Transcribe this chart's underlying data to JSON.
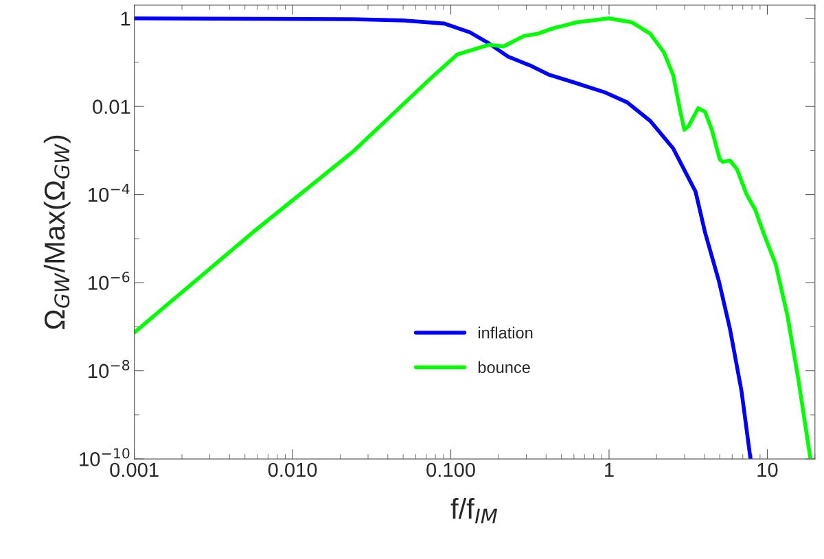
{
  "chart_data": {
    "type": "line",
    "xlabel": "f/f$_{IM}$",
    "ylabel": "Ω$_{GW}$/Max(Ω$_{GW}$)",
    "log": "xy",
    "xlim": [
      0.001,
      20
    ],
    "ylim": [
      1e-10,
      2
    ],
    "xticks": [
      {
        "value": 0.001,
        "label": "0.001"
      },
      {
        "value": 0.01,
        "label": "0.010"
      },
      {
        "value": 0.1,
        "label": "0.100"
      },
      1,
      10
    ],
    "yticks": [
      1,
      {
        "value": 0.1,
        "label": null
      },
      0.01,
      {
        "value": 0.001,
        "label": null
      },
      {
        "value": 0.0001,
        "label": "10$^{−4}$"
      },
      {
        "value": 1e-05,
        "label": null
      },
      {
        "value": 1e-06,
        "label": "10$^{−6}$"
      },
      {
        "value": 1e-07,
        "label": null
      },
      {
        "value": 1e-08,
        "label": "10$^{−8}$"
      },
      {
        "value": 1e-09,
        "label": null
      },
      {
        "value": 1e-10,
        "label": "10$^{−10}$"
      }
    ],
    "grid": false,
    "legend": "bottom",
    "marker": "none",
    "line_style": "solid",
    "series": [
      {
        "name": "inflation",
        "color": "#0000ff",
        "x": [
          0.001,
          0.024,
          0.0513,
          0.0912,
          0.132,
          0.174,
          0.23,
          0.321,
          0.42,
          0.583,
          0.933,
          1.3,
          1.82,
          2.54,
          3.52,
          4.05,
          4.94,
          5.81,
          6.87,
          7.83
        ],
        "values": [
          1,
          0.955,
          0.891,
          0.759,
          0.479,
          0.27,
          0.135,
          0.0836,
          0.0519,
          0.0362,
          0.0211,
          0.0124,
          0.00469,
          0.00112,
          0.000117,
          1.35e-05,
          1.1e-06,
          8.9e-08,
          3.5e-09,
          1e-10
        ]
      },
      {
        "name": "bounce",
        "color": "#00ff00",
        "x": [
          0.001,
          0.00556,
          0.024,
          0.0748,
          0.11,
          0.174,
          0.215,
          0.29,
          0.354,
          0.45,
          0.513,
          0.625,
          1.0,
          1.39,
          1.82,
          2.22,
          2.54,
          2.8,
          2.99,
          3.18,
          3.66,
          4.04,
          4.46,
          5.01,
          5.25,
          5.81,
          6.43,
          7.36,
          8.39,
          9.46,
          11.3,
          13.4,
          15.7,
          18.7
        ],
        "values": [
          7.4e-08,
          1.35e-05,
          0.00093,
          0.0437,
          0.151,
          0.25,
          0.229,
          0.398,
          0.447,
          0.603,
          0.676,
          0.813,
          1.0,
          0.813,
          0.447,
          0.17,
          0.0519,
          0.00871,
          0.00295,
          0.00355,
          0.00912,
          0.00759,
          0.00295,
          0.00063,
          0.00055,
          0.00059,
          0.00038,
          0.000105,
          4.5e-05,
          1.35e-05,
          2.6e-06,
          1.8e-07,
          6.5e-09,
          1.05e-10
        ]
      }
    ]
  }
}
